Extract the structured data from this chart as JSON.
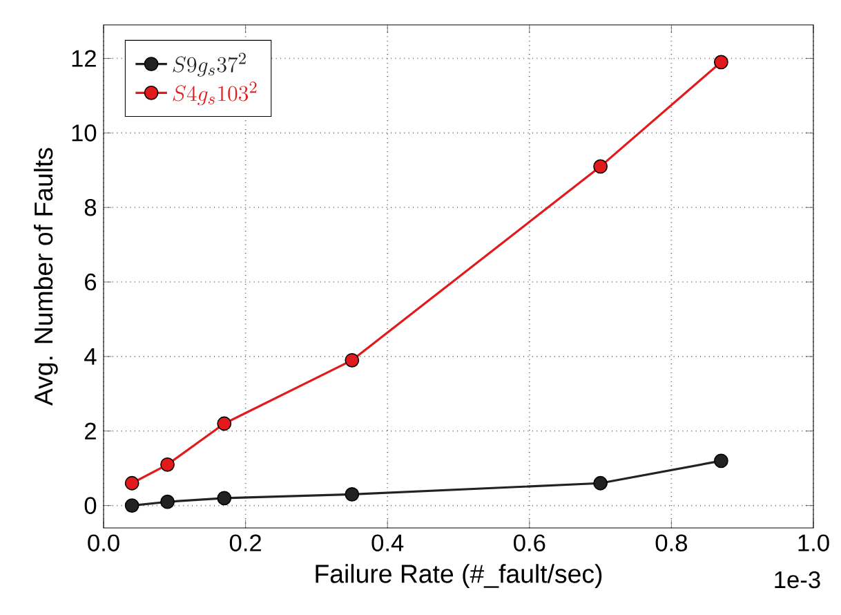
{
  "chart_data": {
    "type": "line",
    "xlabel": "Failure Rate (#_fault/sec)",
    "ylabel": "Avg. Number of Faults",
    "x": [
      0.04,
      0.09,
      0.17,
      0.35,
      0.7,
      0.87
    ],
    "series": [
      {
        "name": "S9g_s37^2",
        "color": "#222222",
        "values": [
          0,
          0.1,
          0.2,
          0.3,
          0.6,
          1.2
        ]
      },
      {
        "name": "S4g_s103^2",
        "color": "#e31a1c",
        "values": [
          0.6,
          1.1,
          2.2,
          3.9,
          9.1,
          11.9
        ]
      }
    ],
    "xlim": [
      0,
      1.0
    ],
    "ylim": [
      -0.6,
      12.9
    ],
    "xticks": [
      {
        "value": 0,
        "label": "0.0"
      },
      {
        "value": 0.2,
        "label": "0.2"
      },
      {
        "value": 0.4,
        "label": "0.4"
      },
      {
        "value": 0.6,
        "label": "0.6"
      },
      {
        "value": 0.8,
        "label": "0.8"
      },
      {
        "value": 1.0,
        "label": "1.0"
      }
    ],
    "yticks": [
      0,
      2,
      4,
      6,
      8,
      10,
      12
    ],
    "annotations": [
      "1e-3"
    ],
    "grid": true,
    "legend": "top left",
    "marker": "circle",
    "line_style": "solid"
  }
}
